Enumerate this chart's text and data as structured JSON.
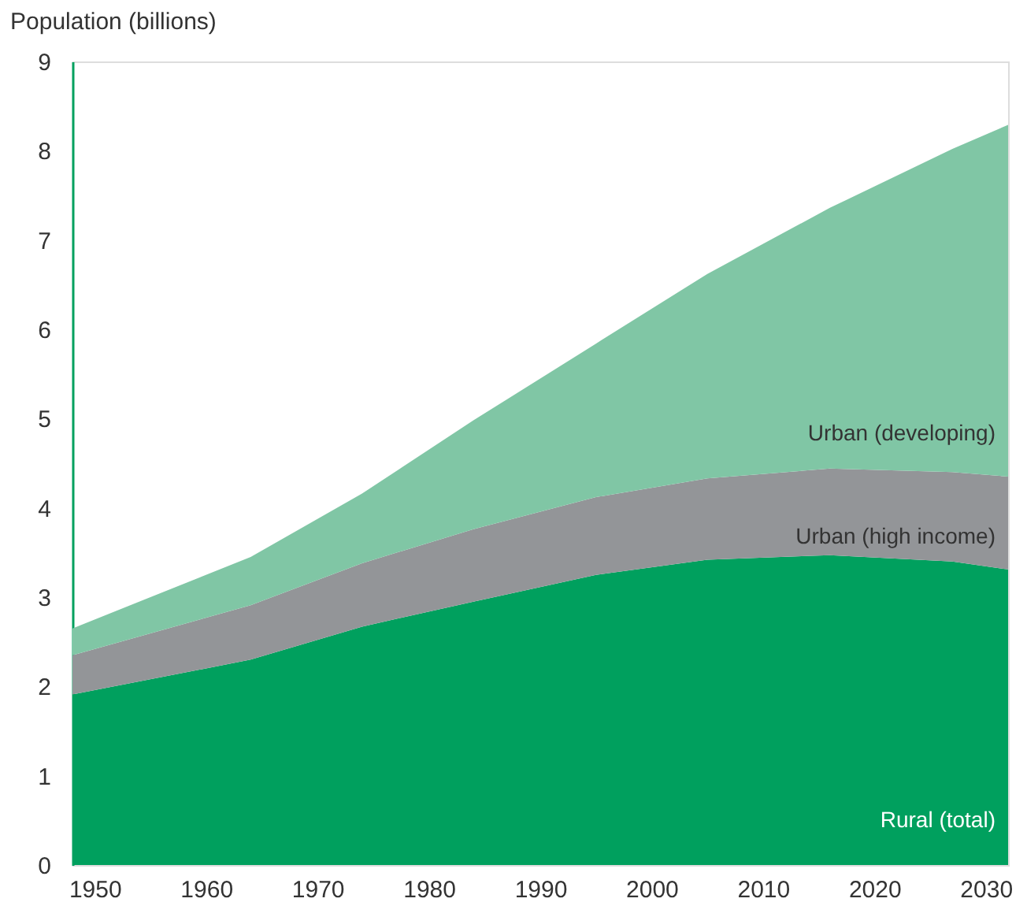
{
  "chart_data": {
    "type": "area",
    "stacked": true,
    "ylabel": "Population (billions)",
    "x": [
      1948,
      1964,
      1974,
      1984,
      1995,
      2005,
      2016,
      2027,
      2032
    ],
    "series": [
      {
        "name": "Rural (total)",
        "color": "#00a05e",
        "values": [
          1.91,
          2.3,
          2.67,
          2.95,
          3.25,
          3.42,
          3.47,
          3.4,
          3.31
        ]
      },
      {
        "name": "Urban (high income)",
        "color": "#939598",
        "values": [
          0.44,
          0.61,
          0.71,
          0.81,
          0.87,
          0.91,
          0.97,
          1.0,
          1.04
        ]
      },
      {
        "name": "Urban (developing)",
        "color": "#80c6a5",
        "values": [
          0.3,
          0.54,
          0.78,
          1.22,
          1.72,
          2.29,
          2.92,
          3.62,
          3.94
        ]
      }
    ],
    "xlim": [
      1948,
      2032
    ],
    "xticks": [
      1950,
      1960,
      1970,
      1980,
      1990,
      2000,
      2010,
      2020,
      2030
    ],
    "ylim": [
      0,
      9
    ],
    "yticks": [
      0,
      1,
      2,
      3,
      4,
      5,
      6,
      7,
      8,
      9
    ],
    "grid": false,
    "legend": false
  }
}
